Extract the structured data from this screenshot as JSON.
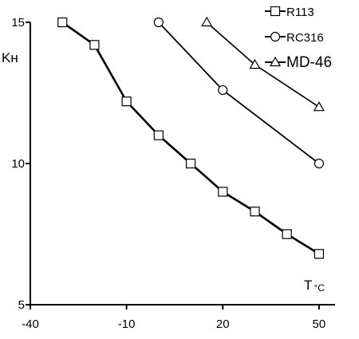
{
  "chart_data": {
    "type": "line",
    "title": "",
    "xlabel": "T",
    "xlabel_unit": "°C",
    "ylabel": "Kн",
    "xlim": [
      -40,
      55
    ],
    "ylim": [
      5,
      15
    ],
    "x_ticks": [
      -40,
      -10,
      20,
      50
    ],
    "x_tick_labels": [
      "-40",
      "-10",
      "20",
      "50"
    ],
    "y_ticks": [
      5,
      10,
      15
    ],
    "y_tick_labels": [
      "5",
      "10",
      "15"
    ],
    "grid": false,
    "legend_position": "top-right",
    "series": [
      {
        "name": "R113",
        "marker": "square",
        "x": [
          -30,
          -20,
          -10,
          0,
          10,
          20,
          30,
          40,
          50
        ],
        "y": [
          15.0,
          14.2,
          12.2,
          11.0,
          10.0,
          9.0,
          8.3,
          7.5,
          6.8
        ]
      },
      {
        "name": "RC316",
        "marker": "circle",
        "x": [
          0,
          20,
          50
        ],
        "y": [
          15.0,
          12.6,
          10.0
        ]
      },
      {
        "name": "MD-46",
        "marker": "triangle",
        "x": [
          15,
          30,
          50
        ],
        "y": [
          15.0,
          13.5,
          12.0
        ]
      }
    ]
  }
}
